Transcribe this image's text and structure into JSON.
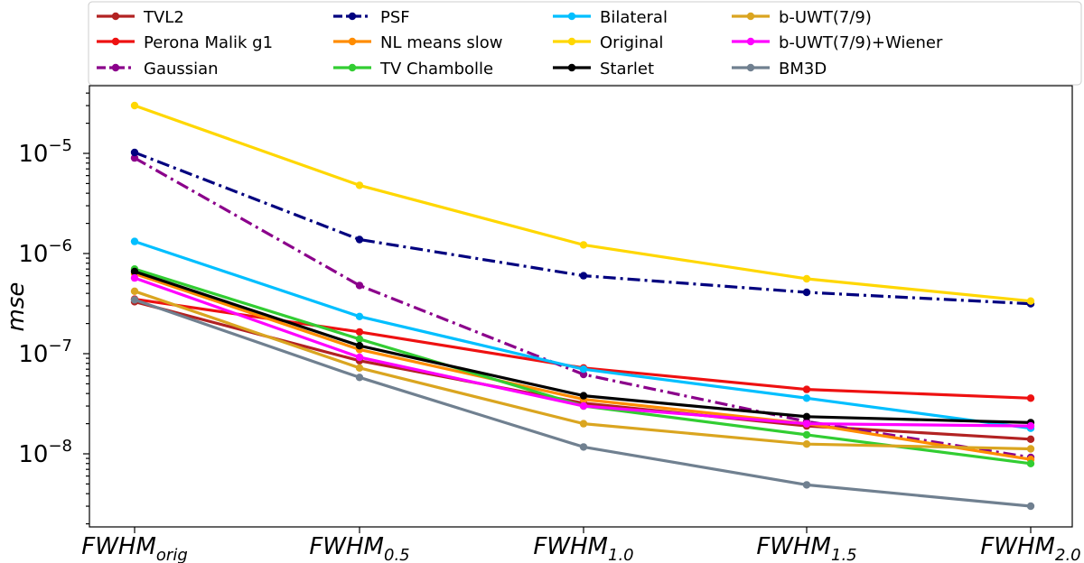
{
  "chart_data": {
    "type": "line",
    "ylabel": "mse",
    "yscale": "log",
    "ylim": [
      2e-09,
      5e-05
    ],
    "categories": [
      "FWHM_orig",
      "FWHM_0.5",
      "FWHM_1.0",
      "FWHM_1.5",
      "FWHM_2.0"
    ],
    "x_tick_labels": [
      {
        "base": "FWHM",
        "sub": "orig"
      },
      {
        "base": "FWHM",
        "sub": "0.5"
      },
      {
        "base": "FWHM",
        "sub": "1.0"
      },
      {
        "base": "FWHM",
        "sub": "1.5"
      },
      {
        "base": "FWHM",
        "sub": "2.0"
      }
    ],
    "y_ticks": [
      {
        "value": 1e-08,
        "base": "10",
        "exp": "−8"
      },
      {
        "value": 1e-07,
        "base": "10",
        "exp": "−7"
      },
      {
        "value": 1e-06,
        "base": "10",
        "exp": "−6"
      },
      {
        "value": 1e-05,
        "base": "10",
        "exp": "−5"
      }
    ],
    "legend_position": "top",
    "grid": false,
    "series": [
      {
        "name": "TVL2",
        "color": "#b22222",
        "dash": "solid",
        "values": [
          3.3e-07,
          8.5e-08,
          3.2e-08,
          1.9e-08,
          1.4e-08
        ]
      },
      {
        "name": "Perona Malik g1",
        "color": "#ee1111",
        "dash": "solid",
        "values": [
          3.5e-07,
          1.65e-07,
          7.2e-08,
          4.4e-08,
          3.6e-08
        ]
      },
      {
        "name": "Gaussian",
        "color": "#8b008b",
        "dash": "dashdot",
        "values": [
          9e-06,
          4.8e-07,
          6.2e-08,
          2.1e-08,
          9.2e-09
        ]
      },
      {
        "name": "PSF",
        "color": "#00007f",
        "dash": "dashdot",
        "values": [
          1.02e-05,
          1.38e-06,
          6e-07,
          4.1e-07,
          3.15e-07
        ]
      },
      {
        "name": "NL means slow",
        "color": "#ff8c00",
        "dash": "solid",
        "values": [
          6.3e-07,
          1.1e-07,
          3.5e-08,
          2e-08,
          8.8e-09
        ]
      },
      {
        "name": "TV Chambolle",
        "color": "#32cd32",
        "dash": "solid",
        "values": [
          7e-07,
          1.4e-07,
          3e-08,
          1.55e-08,
          8e-09
        ]
      },
      {
        "name": "Bilateral",
        "color": "#00bfff",
        "dash": "solid",
        "values": [
          1.32e-06,
          2.35e-07,
          7e-08,
          3.6e-08,
          1.8e-08
        ]
      },
      {
        "name": "Original",
        "color": "#ffd700",
        "dash": "solid",
        "values": [
          3e-05,
          4.8e-06,
          1.22e-06,
          5.6e-07,
          3.35e-07
        ]
      },
      {
        "name": "Starlet",
        "color": "#000000",
        "dash": "solid",
        "values": [
          6.6e-07,
          1.2e-07,
          3.8e-08,
          2.35e-08,
          2.05e-08
        ]
      },
      {
        "name": "b-UWT(7/9)",
        "color": "#daa520",
        "dash": "solid",
        "values": [
          4.2e-07,
          7.2e-08,
          2e-08,
          1.25e-08,
          1.12e-08
        ]
      },
      {
        "name": "b-UWT(7/9)+Wiener",
        "color": "#ff00ff",
        "dash": "solid",
        "values": [
          5.7e-07,
          9.2e-08,
          3e-08,
          2e-08,
          1.9e-08
        ]
      },
      {
        "name": "BM3D",
        "color": "#708090",
        "dash": "solid",
        "values": [
          3.45e-07,
          5.8e-08,
          1.17e-08,
          4.9e-09,
          3e-09
        ]
      }
    ]
  }
}
